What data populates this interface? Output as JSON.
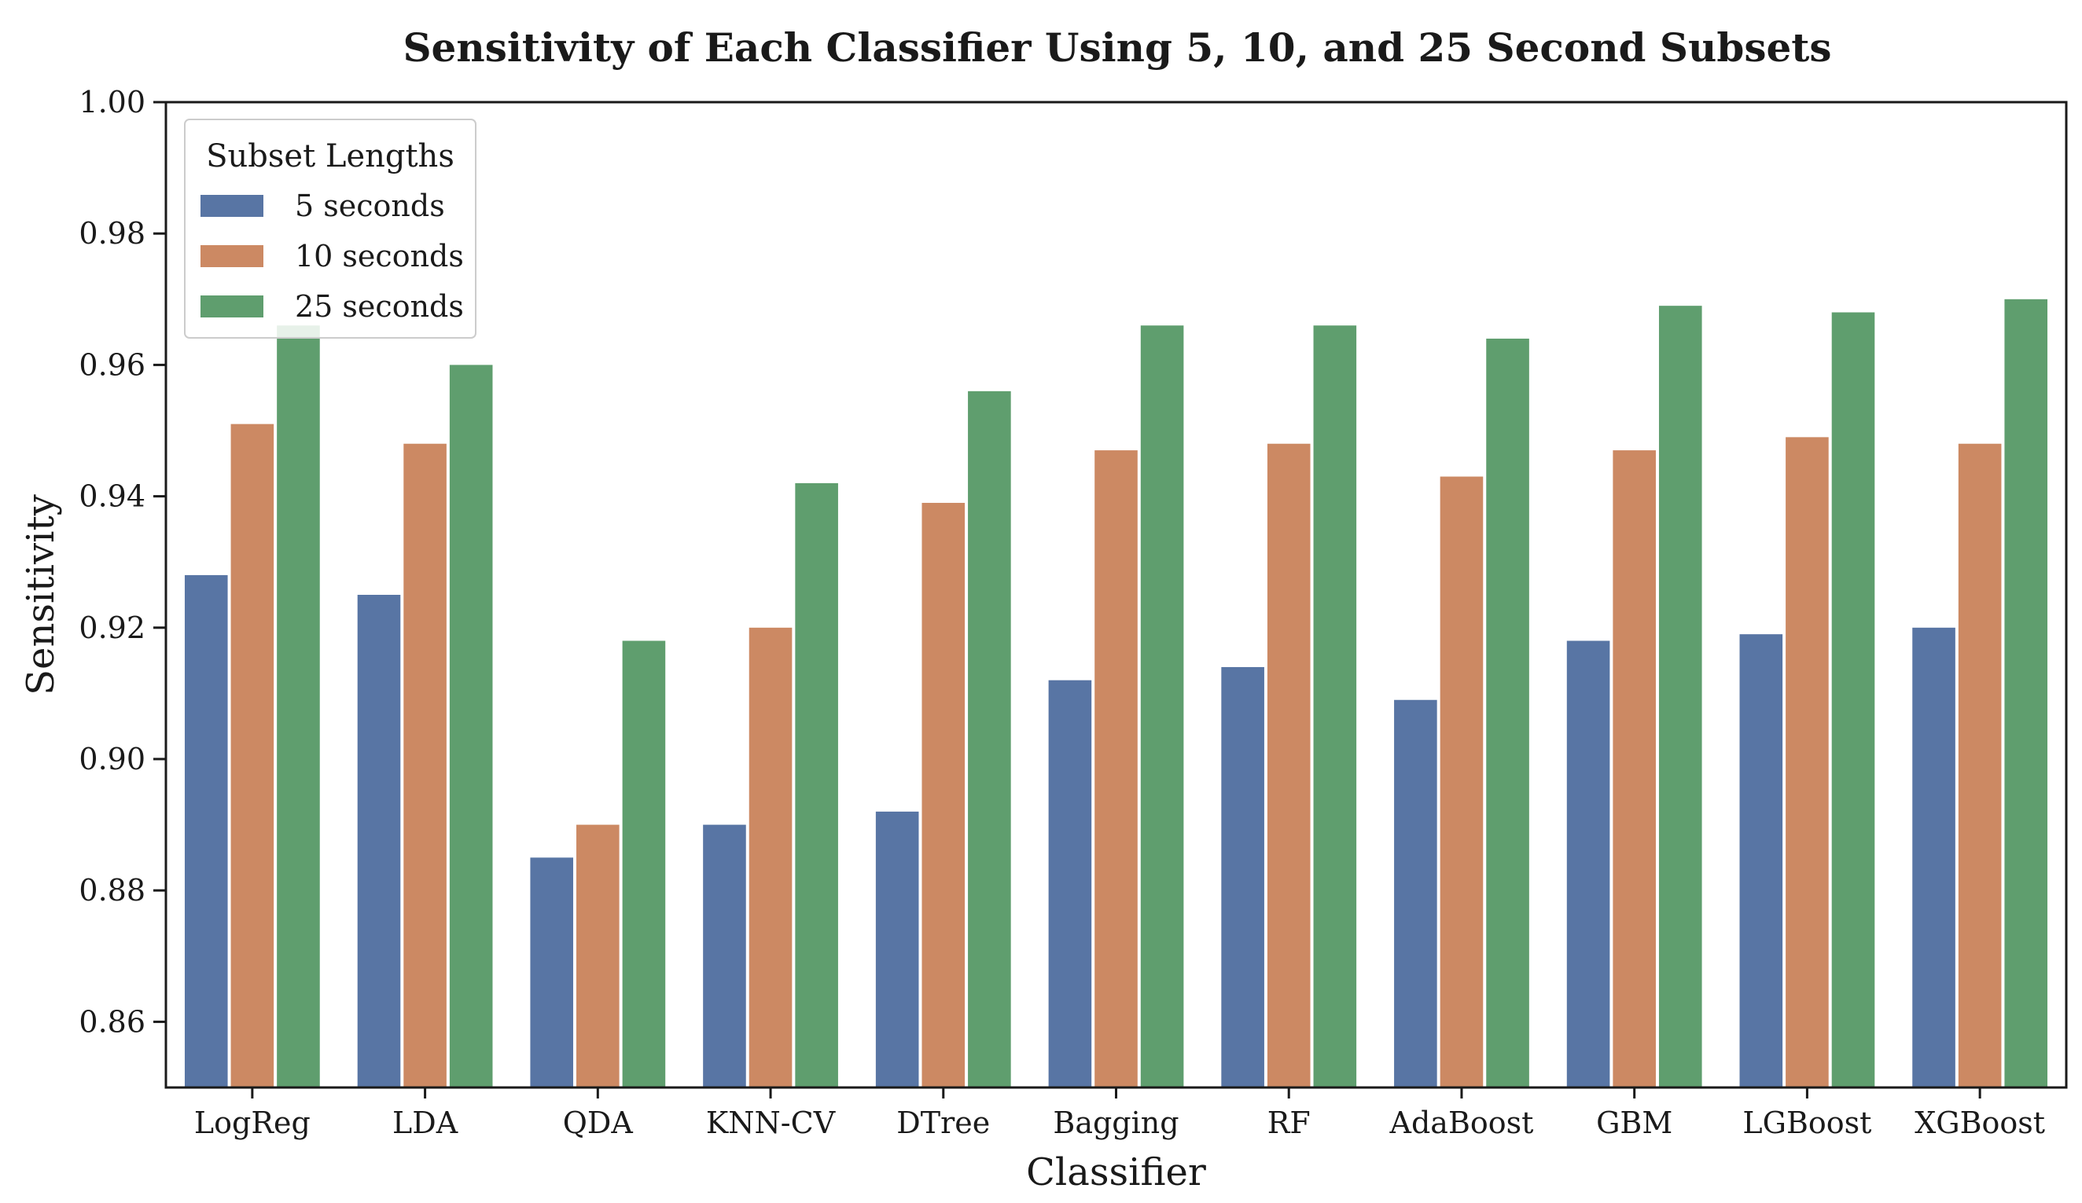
{
  "chart_data": {
    "type": "bar",
    "title": "Sensitivity of Each Classifier Using 5, 10, and 25 Second Subsets",
    "xlabel": "Classifier",
    "ylabel": "Sensitivity",
    "ylim": [
      0.85,
      1.0
    ],
    "yticks": [
      "0.86",
      "0.88",
      "0.90",
      "0.92",
      "0.94",
      "0.96",
      "0.98",
      "1.00"
    ],
    "grid": false,
    "legend": {
      "title": "Subset Lengths",
      "position": "top-left"
    },
    "categories": [
      "LogReg",
      "LDA",
      "QDA",
      "KNN-CV",
      "DTree",
      "Bagging",
      "RF",
      "AdaBoost",
      "GBM",
      "LGBoost",
      "XGBoost"
    ],
    "series": [
      {
        "name": "5 seconds",
        "color": "#5875a4",
        "values": [
          0.928,
          0.925,
          0.885,
          0.89,
          0.892,
          0.912,
          0.914,
          0.909,
          0.918,
          0.919,
          0.92
        ]
      },
      {
        "name": "10 seconds",
        "color": "#cc8963",
        "values": [
          0.951,
          0.948,
          0.89,
          0.92,
          0.939,
          0.947,
          0.948,
          0.943,
          0.947,
          0.949,
          0.948
        ]
      },
      {
        "name": "25 seconds",
        "color": "#5f9e6e",
        "values": [
          0.966,
          0.96,
          0.918,
          0.942,
          0.956,
          0.966,
          0.966,
          0.964,
          0.969,
          0.968,
          0.97
        ]
      }
    ]
  }
}
